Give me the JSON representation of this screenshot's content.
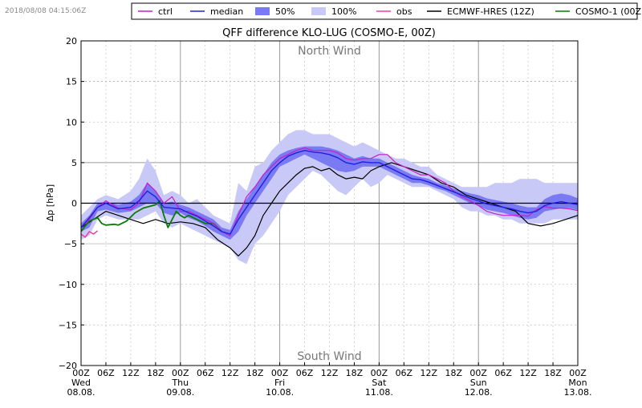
{
  "timestamp": "2018/08/08 04:15:06Z",
  "chart_data": {
    "type": "line",
    "title": "QFF difference KLO-LUG (COSMO-E, 00Z)",
    "ylabel": "Δp [hPa]",
    "xlabel": "",
    "ylim": [
      -20,
      20
    ],
    "xlim": [
      0,
      120
    ],
    "yticks": [
      20,
      15,
      10,
      5,
      0,
      -5,
      -10,
      -15,
      -20
    ],
    "yticks_labels": [
      "20",
      "15",
      "10",
      "5",
      "0",
      "−5",
      "−10",
      "−15",
      "−20"
    ],
    "xticks": [
      {
        "h": 0,
        "label": "00Z",
        "day": "Wed",
        "date": "08.08."
      },
      {
        "h": 6,
        "label": "06Z"
      },
      {
        "h": 12,
        "label": "12Z"
      },
      {
        "h": 18,
        "label": "18Z"
      },
      {
        "h": 24,
        "label": "00Z",
        "day": "Thu",
        "date": "09.08."
      },
      {
        "h": 30,
        "label": "06Z"
      },
      {
        "h": 36,
        "label": "12Z"
      },
      {
        "h": 42,
        "label": "18Z"
      },
      {
        "h": 48,
        "label": "00Z",
        "day": "Fri",
        "date": "10.08."
      },
      {
        "h": 54,
        "label": "06Z"
      },
      {
        "h": 60,
        "label": "12Z"
      },
      {
        "h": 66,
        "label": "18Z"
      },
      {
        "h": 72,
        "label": "00Z",
        "day": "Sat",
        "date": "11.08."
      },
      {
        "h": 78,
        "label": "06Z"
      },
      {
        "h": 84,
        "label": "12Z"
      },
      {
        "h": 90,
        "label": "18Z"
      },
      {
        "h": 96,
        "label": "00Z",
        "day": "Sun",
        "date": "12.08."
      },
      {
        "h": 102,
        "label": "06Z"
      },
      {
        "h": 108,
        "label": "12Z"
      },
      {
        "h": 114,
        "label": "18Z"
      },
      {
        "h": 120,
        "label": "00Z",
        "day": "Mon",
        "date": "13.08."
      }
    ],
    "annotations": [
      {
        "text": "North Wind",
        "x": 60,
        "y": 18.8
      },
      {
        "text": "South Wind",
        "x": 60,
        "y": -18.8
      }
    ],
    "legend": {
      "placement": "top",
      "entries": [
        {
          "label": "ctrl",
          "kind": "line",
          "color": "#c71fc7"
        },
        {
          "label": "median",
          "kind": "line",
          "color": "#2020e0"
        },
        {
          "label": "50%",
          "kind": "patch",
          "color": "#7a7af2"
        },
        {
          "label": "100%",
          "kind": "patch",
          "color": "#c9c9f7"
        },
        {
          "label": "obs",
          "kind": "line",
          "color": "#ef3fa0"
        },
        {
          "label": "ECMWF-HRES (12Z)",
          "kind": "line",
          "color": "#000000"
        },
        {
          "label": "COSMO-1 (00Z)",
          "kind": "line",
          "color": "#0a7a0a"
        }
      ]
    },
    "band100": {
      "color": "#c9c9f7",
      "x": [
        0,
        2,
        4,
        6,
        9,
        12,
        14,
        16,
        18,
        20,
        22,
        24,
        26,
        28,
        30,
        32,
        34,
        36,
        38,
        40,
        42,
        44,
        46,
        48,
        50,
        52,
        54,
        56,
        58,
        60,
        62,
        64,
        66,
        68,
        70,
        72,
        74,
        76,
        78,
        80,
        82,
        84,
        86,
        88,
        90,
        92,
        94,
        96,
        98,
        100,
        102,
        104,
        106,
        108,
        110,
        112,
        114,
        116,
        118,
        120
      ],
      "upper": [
        -1.5,
        -0.5,
        0.5,
        1.0,
        0.5,
        1.5,
        3.0,
        5.5,
        4.0,
        1.0,
        1.5,
        1.0,
        0.0,
        0.5,
        -0.5,
        -1.5,
        -2.0,
        -2.5,
        2.5,
        1.5,
        4.5,
        5.0,
        6.5,
        7.5,
        8.5,
        9.0,
        9.0,
        8.5,
        8.5,
        8.5,
        8.0,
        7.5,
        7.0,
        7.5,
        7.0,
        6.5,
        6.0,
        5.5,
        5.5,
        5.0,
        4.5,
        4.5,
        3.5,
        3.0,
        2.5,
        2.0,
        2.0,
        2.0,
        2.0,
        2.5,
        2.5,
        2.5,
        3.0,
        3.0,
        3.0,
        2.5,
        2.5,
        2.5,
        2.5,
        2.5
      ],
      "lower": [
        -4.5,
        -4.0,
        -2.0,
        -1.5,
        -2.0,
        -2.0,
        -2.0,
        -1.5,
        -1.0,
        -2.5,
        -3.0,
        -2.5,
        -3.0,
        -3.5,
        -4.0,
        -4.5,
        -5.0,
        -5.5,
        -7.0,
        -7.5,
        -5.0,
        -4.0,
        -2.5,
        -1.0,
        1.0,
        2.0,
        3.0,
        4.0,
        3.5,
        2.5,
        1.5,
        1.0,
        2.0,
        3.0,
        2.0,
        2.5,
        3.5,
        3.0,
        2.5,
        2.0,
        2.0,
        2.0,
        1.5,
        1.0,
        0.5,
        -0.5,
        -1.0,
        -1.0,
        -1.5,
        -1.5,
        -2.0,
        -2.0,
        -2.5,
        -2.5,
        -2.5,
        -2.5,
        -2.0,
        -2.0,
        -2.0,
        -2.0
      ]
    },
    "band50": {
      "color": "#7a7af2",
      "x": [
        0,
        2,
        4,
        6,
        9,
        12,
        14,
        16,
        18,
        20,
        22,
        24,
        26,
        28,
        30,
        32,
        34,
        36,
        38,
        40,
        42,
        44,
        46,
        48,
        50,
        52,
        54,
        56,
        58,
        60,
        62,
        64,
        66,
        68,
        70,
        72,
        74,
        76,
        78,
        80,
        82,
        84,
        86,
        88,
        90,
        92,
        94,
        96,
        98,
        100,
        102,
        104,
        106,
        108,
        110,
        112,
        114,
        116,
        118,
        120
      ],
      "upper": [
        -2.5,
        -1.5,
        0.0,
        0.2,
        -0.2,
        0.2,
        1.0,
        2.5,
        1.5,
        0.0,
        0.2,
        -0.2,
        -0.5,
        -1.0,
        -1.5,
        -2.0,
        -3.0,
        -3.3,
        -1.0,
        0.5,
        2.0,
        3.5,
        5.0,
        6.0,
        6.5,
        6.8,
        7.0,
        7.0,
        7.0,
        6.8,
        6.5,
        6.0,
        5.5,
        5.8,
        5.5,
        5.5,
        5.0,
        4.5,
        4.0,
        3.5,
        3.2,
        3.0,
        2.5,
        2.2,
        1.8,
        1.5,
        1.2,
        1.0,
        0.6,
        0.4,
        0.2,
        0.0,
        -0.3,
        -0.5,
        -0.5,
        0.5,
        1.0,
        1.2,
        1.0,
        0.6
      ],
      "lower": [
        -3.5,
        -3.0,
        -1.0,
        -0.8,
        -1.2,
        -1.0,
        -0.5,
        0.0,
        0.0,
        -1.2,
        -1.5,
        -1.2,
        -1.8,
        -2.2,
        -2.8,
        -3.5,
        -4.0,
        -4.5,
        -3.5,
        -1.5,
        0.0,
        1.5,
        3.0,
        4.5,
        5.0,
        5.5,
        6.0,
        5.5,
        5.0,
        4.5,
        4.0,
        3.8,
        4.0,
        4.5,
        4.5,
        4.5,
        4.0,
        3.5,
        3.0,
        2.5,
        2.5,
        2.2,
        1.8,
        1.5,
        1.0,
        0.5,
        0.0,
        -0.3,
        -0.8,
        -1.0,
        -1.2,
        -1.5,
        -1.8,
        -2.0,
        -1.8,
        -1.0,
        -0.8,
        -0.6,
        -0.6,
        -0.8
      ]
    },
    "series": [
      {
        "name": "ECMWF-HRES (12Z)",
        "color": "#000000",
        "width": 1.2,
        "x": [
          0,
          3,
          6,
          9,
          12,
          15,
          18,
          21,
          24,
          27,
          30,
          33,
          36,
          38,
          40,
          42,
          44,
          46,
          48,
          50,
          52,
          54,
          56,
          58,
          60,
          62,
          64,
          66,
          68,
          70,
          72,
          75,
          78,
          81,
          84,
          87,
          90,
          93,
          96,
          99,
          102,
          105,
          108,
          111,
          114,
          117,
          120
        ],
        "y": [
          -3.0,
          -2.0,
          -1.0,
          -1.5,
          -2.0,
          -2.5,
          -2.0,
          -2.5,
          -2.3,
          -2.5,
          -3.0,
          -4.5,
          -5.5,
          -6.5,
          -5.5,
          -4.0,
          -1.5,
          0.0,
          1.5,
          2.5,
          3.5,
          4.3,
          4.5,
          4.0,
          4.3,
          3.5,
          3.0,
          3.2,
          3.0,
          4.0,
          4.5,
          5.0,
          4.5,
          4.0,
          3.5,
          2.5,
          2.0,
          1.0,
          0.5,
          0.0,
          -0.5,
          -1.0,
          -2.5,
          -2.8,
          -2.5,
          -2.0,
          -1.5
        ]
      },
      {
        "name": "COSMO-1 (00Z)",
        "color": "#0a7a0a",
        "width": 1.8,
        "x": [
          0,
          1,
          2,
          4,
          5,
          6,
          8,
          9,
          11,
          13,
          15,
          18,
          19,
          20,
          21,
          22,
          23,
          24,
          25,
          26,
          28,
          30,
          32,
          34
        ],
        "y": [
          -3.5,
          -2.8,
          -2.2,
          -1.8,
          -2.5,
          -2.7,
          -2.6,
          -2.7,
          -2.2,
          -1.2,
          -0.6,
          -0.2,
          0.3,
          -1.5,
          -3.0,
          -2.0,
          -1.0,
          -1.5,
          -1.8,
          -1.5,
          -2.0,
          -2.5,
          -2.5,
          -3.5
        ]
      },
      {
        "name": "obs",
        "color": "#ef3fa0",
        "width": 1.5,
        "x": [
          0,
          1,
          2,
          3,
          4
        ],
        "y": [
          -3.8,
          -4.2,
          -3.5,
          -3.8,
          -3.4
        ]
      },
      {
        "name": "ctrl",
        "color": "#c71fc7",
        "width": 1.2,
        "x": [
          0,
          2,
          4,
          6,
          9,
          12,
          14,
          16,
          18,
          20,
          22,
          24,
          26,
          28,
          30,
          32,
          34,
          36,
          38,
          40,
          42,
          44,
          46,
          48,
          50,
          52,
          54,
          56,
          58,
          60,
          62,
          64,
          66,
          68,
          70,
          72,
          74,
          76,
          78,
          80,
          82,
          84,
          86,
          88,
          90,
          92,
          94,
          96,
          98,
          100,
          102,
          104,
          106,
          108,
          110,
          112,
          114,
          116,
          118,
          120
        ],
        "y": [
          -3.0,
          -2.0,
          -0.5,
          0.3,
          -0.6,
          -0.8,
          0.0,
          2.5,
          1.5,
          0.0,
          0.8,
          -1.0,
          -1.0,
          -1.5,
          -2.0,
          -2.5,
          -3.5,
          -4.0,
          -1.5,
          0.8,
          2.0,
          3.5,
          4.5,
          5.5,
          6.0,
          6.5,
          6.8,
          6.5,
          6.5,
          6.5,
          6.2,
          5.5,
          5.3,
          5.5,
          5.5,
          6.0,
          6.0,
          5.0,
          4.5,
          4.0,
          3.5,
          3.5,
          3.0,
          2.5,
          1.5,
          0.8,
          0.3,
          -0.3,
          -1.0,
          -1.3,
          -1.5,
          -1.5,
          -1.5,
          -1.6,
          -0.8,
          -0.4,
          -0.6,
          -0.6,
          -0.7,
          -0.9
        ]
      },
      {
        "name": "median",
        "color": "#2020e0",
        "width": 1.4,
        "x": [
          0,
          2,
          4,
          6,
          9,
          12,
          14,
          16,
          18,
          20,
          22,
          24,
          26,
          28,
          30,
          32,
          34,
          36,
          38,
          40,
          42,
          44,
          46,
          48,
          50,
          52,
          54,
          56,
          58,
          60,
          62,
          64,
          66,
          68,
          70,
          72,
          74,
          76,
          78,
          80,
          82,
          84,
          86,
          88,
          90,
          92,
          94,
          96,
          98,
          100,
          102,
          104,
          106,
          108,
          110,
          112,
          114,
          116,
          118,
          120
        ],
        "y": [
          -3.0,
          -1.8,
          -0.5,
          0.0,
          -0.7,
          -0.5,
          0.3,
          1.5,
          0.8,
          -0.5,
          -0.6,
          -0.7,
          -1.2,
          -1.6,
          -2.2,
          -2.8,
          -3.5,
          -3.8,
          -2.0,
          -0.5,
          1.0,
          2.5,
          4.0,
          5.0,
          5.8,
          6.2,
          6.5,
          6.3,
          6.2,
          6.0,
          5.6,
          5.0,
          4.8,
          5.1,
          5.0,
          5.0,
          4.5,
          4.0,
          3.5,
          3.0,
          2.9,
          2.6,
          2.2,
          1.8,
          1.4,
          1.0,
          0.6,
          0.3,
          -0.1,
          -0.3,
          -0.5,
          -0.7,
          -1.0,
          -1.2,
          -1.0,
          -0.3,
          0.0,
          0.2,
          0.0,
          -0.2
        ]
      }
    ]
  }
}
